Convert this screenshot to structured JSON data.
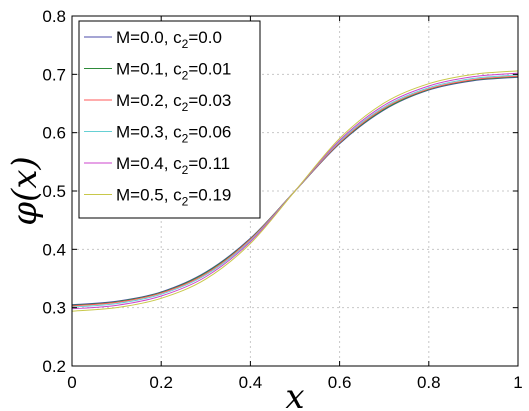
{
  "chart_data": {
    "type": "line",
    "title": "",
    "xlabel": "x",
    "ylabel": "φ(x)",
    "xlim": [
      0,
      1
    ],
    "ylim": [
      0.2,
      0.8
    ],
    "xticks": [
      "0",
      "0.2",
      "0.4",
      "0.6",
      "0.8",
      "1"
    ],
    "yticks": [
      "0.2",
      "0.3",
      "0.4",
      "0.5",
      "0.6",
      "0.7",
      "0.8"
    ],
    "grid": true,
    "legend_position": "top-left",
    "x": [
      0,
      0.1,
      0.2,
      0.3,
      0.4,
      0.5,
      0.6,
      0.7,
      0.8,
      0.9,
      1.0
    ],
    "series": [
      {
        "label_main": "M=0.0, c",
        "label_sub": "2",
        "label_tail": "=0.0",
        "color": "#4b4ba8",
        "values": [
          0.305,
          0.311,
          0.327,
          0.361,
          0.419,
          0.5,
          0.581,
          0.639,
          0.673,
          0.689,
          0.695
        ]
      },
      {
        "label_main": "M=0.1, c",
        "label_sub": "2",
        "label_tail": "=0.01",
        "color": "#2e8b3a",
        "values": [
          0.304,
          0.31,
          0.326,
          0.36,
          0.418,
          0.5,
          0.582,
          0.64,
          0.674,
          0.69,
          0.696
        ]
      },
      {
        "label_main": "M=0.2, c",
        "label_sub": "2",
        "label_tail": "=0.03",
        "color": "#ff5a5a",
        "values": [
          0.303,
          0.309,
          0.325,
          0.358,
          0.417,
          0.5,
          0.583,
          0.642,
          0.675,
          0.691,
          0.697
        ]
      },
      {
        "label_main": "M=0.3, c",
        "label_sub": "2",
        "label_tail": "=0.06",
        "color": "#66d0d4",
        "values": [
          0.301,
          0.307,
          0.323,
          0.356,
          0.415,
          0.5,
          0.585,
          0.644,
          0.677,
          0.693,
          0.699
        ]
      },
      {
        "label_main": "M=0.4, c",
        "label_sub": "2",
        "label_tail": "=0.11",
        "color": "#cc44cc",
        "values": [
          0.298,
          0.304,
          0.32,
          0.353,
          0.413,
          0.5,
          0.587,
          0.647,
          0.68,
          0.696,
          0.702
        ]
      },
      {
        "label_main": "M=0.5, c",
        "label_sub": "2",
        "label_tail": "=0.19",
        "color": "#c8c84a",
        "values": [
          0.294,
          0.3,
          0.316,
          0.349,
          0.41,
          0.5,
          0.59,
          0.651,
          0.684,
          0.7,
          0.706
        ]
      }
    ]
  }
}
